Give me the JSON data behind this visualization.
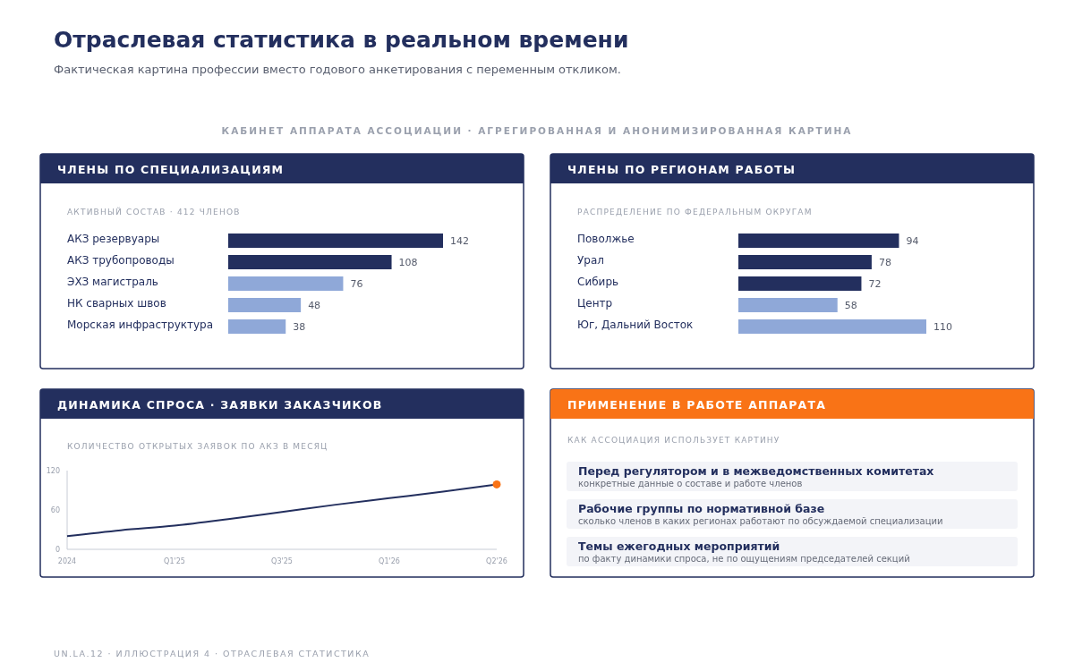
{
  "chart_data": [
    {
      "type": "bar",
      "orientation": "horizontal",
      "title": "ЧЛЕНЫ ПО СПЕЦИАЛИЗАЦИЯМ",
      "subtitle": "АКТИВНЫЙ СОСТАВ · 412 ЧЛЕНОВ",
      "annotations": [
        "Отраслевая статистика в реальном времени",
        "Фактическая картина профессии вместо годового анкетирования с переменным откликом.",
        "КАБИНЕТ АППАРАТА АССОЦИАЦИИ · АГРЕГИРОВАННАЯ И АНОНИМИЗИРОВАННАЯ КАРТИНА",
        "UN.LA.12 · ИЛЛЮСТРАЦИЯ 4 · ОТРАСЛЕВАЯ СТАТИСТИКА"
      ],
      "categories": [
        "АКЗ резервуары",
        "АКЗ трубопроводы",
        "ЭХЗ магистраль",
        "НК сварных швов",
        "Морская инфраструктура"
      ],
      "values": [
        142,
        108,
        76,
        48,
        38
      ],
      "colors": [
        "#232f5e",
        "#232f5e",
        "#8fa8d8",
        "#8fa8d8",
        "#8fa8d8"
      ],
      "data_labels": true
    },
    {
      "type": "bar",
      "orientation": "horizontal",
      "title": "ЧЛЕНЫ ПО РЕГИОНАМ РАБОТЫ",
      "subtitle": "РАСПРЕДЕЛЕНИЕ ПО ФЕДЕРАЛЬНЫМ ОКРУГАМ",
      "categories": [
        "Поволжье",
        "Урал",
        "Сибирь",
        "Центр",
        "Юг, Дальний Восток"
      ],
      "values": [
        94,
        78,
        72,
        58,
        110
      ],
      "colors": [
        "#232f5e",
        "#232f5e",
        "#232f5e",
        "#8fa8d8",
        "#8fa8d8"
      ],
      "data_labels": true
    },
    {
      "type": "line",
      "title": "ДИНАМИКА СПРОСА · ЗАЯВКИ ЗАКАЗЧИКОВ",
      "subtitle": "КОЛИЧЕСТВО ОТКРЫТЫХ ЗАЯВОК ПО АКЗ В МЕСЯЦ",
      "categories": [
        "2024",
        null,
        "Q1'25",
        null,
        "Q3'25",
        null,
        "Q1'26",
        null,
        "Q2'26"
      ],
      "ylim": [
        0,
        120
      ],
      "yticks": [
        0,
        60,
        120
      ],
      "series": [
        {
          "type": "line",
          "color": "#232f5e",
          "values": [
            20,
            29,
            36,
            46,
            57,
            68,
            78,
            88,
            99
          ]
        },
        {
          "type": "scatter",
          "color": "#f97316",
          "values": [
            null,
            null,
            null,
            null,
            null,
            null,
            null,
            null,
            99
          ]
        }
      ]
    },
    {
      "type": "other",
      "title": "ПРИМЕНЕНИЕ В РАБОТЕ АППАРАТА",
      "subtitle": "КАК АССОЦИАЦИЯ ИСПОЛЬЗУЕТ КАРТИНУ",
      "annotations": [
        "Перед регулятором и в межведомственных комитетах",
        "конкретные данные о составе и работе членов",
        "Рабочие группы по нормативной базе",
        "сколько членов в каких регионах работают по обсуждаемой специализации",
        "Темы ежегодных мероприятий",
        "по факту динамики спроса, не по ощущениям председателей секций"
      ]
    }
  ]
}
